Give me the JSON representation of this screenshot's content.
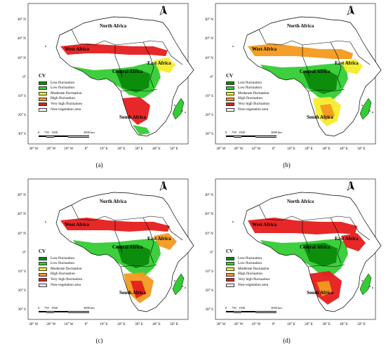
{
  "panels": [
    {
      "caption": "(a)"
    },
    {
      "caption": "(b)"
    },
    {
      "caption": "(c)"
    },
    {
      "caption": "(d)"
    }
  ],
  "regions": {
    "north": "North Africa",
    "west": "West Africa",
    "central": "Central Africa",
    "east": "East Africa",
    "south": "South Africa"
  },
  "legend": {
    "title": "CV",
    "items": [
      {
        "label": "Less fluctuation",
        "color": "#0a8a0a"
      },
      {
        "label": "Low fluctuation",
        "color": "#33cc33"
      },
      {
        "label": "Moderate fluctuation",
        "color": "#f5ec2c"
      },
      {
        "label": "High fluctuation",
        "color": "#f29a1e"
      },
      {
        "label": "Very high fluctuation",
        "color": "#e61c1c"
      },
      {
        "label": "Non-vegetation area",
        "color": "#ffffff"
      }
    ]
  },
  "scale": {
    "t0": "0",
    "t1": "750",
    "t2": "1500",
    "t3": "3000",
    "unit": "km"
  },
  "north_arrow": "N",
  "lat_labels": [
    "30° N",
    "20° N",
    "10° N",
    "0°",
    "10° S",
    "20° S",
    "30° S"
  ],
  "lon_labels": [
    "30° W",
    "20° W",
    "10° W",
    "0°",
    "10° E",
    "20° E",
    "30° E",
    "40° E",
    "50° E"
  ]
}
